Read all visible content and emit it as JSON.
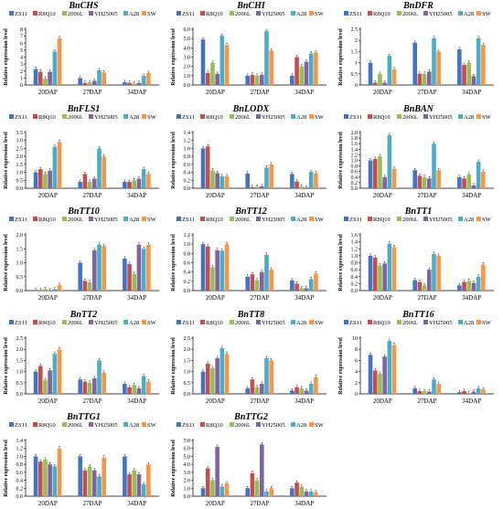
{
  "series_colors": [
    "#4472c4",
    "#c0504d",
    "#9bbb59",
    "#8064a2",
    "#4bacc6",
    "#f79646"
  ],
  "chart_data": [
    {
      "type": "bar",
      "title": "BnCHS",
      "ylabel": "Relative expression level",
      "ylim": [
        0,
        8
      ],
      "yticks": [
        0,
        1,
        2,
        3,
        4,
        5,
        6,
        7,
        8
      ],
      "ytick_labels": [
        "0",
        "1",
        "2",
        "3",
        "4",
        "5",
        "6",
        "7",
        "8"
      ],
      "categories": [
        "20DAP",
        "27DAP",
        "34DAP"
      ],
      "series": [
        {
          "name": "ZS11",
          "values": [
            2.3,
            1.0,
            0.4
          ]
        },
        {
          "name": "R8Q10",
          "values": [
            1.9,
            0.3,
            0.3
          ]
        },
        {
          "name": "2006L",
          "values": [
            0.9,
            0.4,
            0.2
          ]
        },
        {
          "name": "YH25005",
          "values": [
            1.9,
            0.6,
            0.3
          ]
        },
        {
          "name": "A28",
          "values": [
            4.8,
            2.1,
            1.3
          ]
        },
        {
          "name": "SW",
          "values": [
            6.7,
            1.8,
            1.7
          ]
        }
      ]
    },
    {
      "type": "bar",
      "title": "BnCHI",
      "ylabel": "Relative expression level",
      "ylim": [
        0,
        6
      ],
      "yticks": [
        0,
        1,
        2,
        3,
        4,
        5,
        6
      ],
      "ytick_labels": [
        "0.0",
        "1.0",
        "2.0",
        "3.0",
        "4.0",
        "5.0",
        "6.0"
      ],
      "categories": [
        "20DAP",
        "27DAP",
        "34DAP"
      ],
      "series": [
        {
          "name": "ZS11",
          "values": [
            4.9,
            1.0,
            1.0
          ]
        },
        {
          "name": "R8Q10",
          "values": [
            1.3,
            1.1,
            3.0
          ]
        },
        {
          "name": "2006L",
          "values": [
            2.4,
            1.0,
            2.0
          ]
        },
        {
          "name": "YH25005",
          "values": [
            1.2,
            1.1,
            2.5
          ]
        },
        {
          "name": "A28",
          "values": [
            5.3,
            5.8,
            3.4
          ]
        },
        {
          "name": "SW",
          "values": [
            4.3,
            3.7,
            3.5
          ]
        }
      ]
    },
    {
      "type": "bar",
      "title": "BnDFR",
      "ylabel": "Relative expression level",
      "ylim": [
        0,
        2.5
      ],
      "yticks": [
        0,
        0.5,
        1,
        1.5,
        2,
        2.5
      ],
      "ytick_labels": [
        "0",
        "0.5",
        "1",
        "1.5",
        "2",
        "2.5"
      ],
      "categories": [
        "20DAP",
        "27DAP",
        "34DAP"
      ],
      "series": [
        {
          "name": "ZS11",
          "values": [
            1.0,
            1.9,
            1.6
          ]
        },
        {
          "name": "R8Q10",
          "values": [
            0.1,
            0.5,
            0.9
          ]
        },
        {
          "name": "2006L",
          "values": [
            0.5,
            0.5,
            1.0
          ]
        },
        {
          "name": "YH25005",
          "values": [
            0.1,
            0.6,
            0.4
          ]
        },
        {
          "name": "A28",
          "values": [
            1.3,
            2.1,
            2.1
          ]
        },
        {
          "name": "SW",
          "values": [
            0.7,
            1.5,
            1.8
          ]
        }
      ]
    },
    {
      "type": "bar",
      "title": "BnFLS1",
      "ylabel": "Relative expression level",
      "ylim": [
        0,
        3.5
      ],
      "yticks": [
        0,
        0.5,
        1,
        1.5,
        2,
        2.5,
        3,
        3.5
      ],
      "ytick_labels": [
        "0.0",
        "0.5",
        "1.0",
        "1.5",
        "2.0",
        "2.5",
        "3.0",
        "3.5"
      ],
      "categories": [
        "20DAP",
        "27DAP",
        "34DAP"
      ],
      "series": [
        {
          "name": "ZS11",
          "values": [
            1.0,
            0.4,
            0.4
          ]
        },
        {
          "name": "R8Q10",
          "values": [
            1.2,
            0.9,
            0.4
          ]
        },
        {
          "name": "2006L",
          "values": [
            0.9,
            0.4,
            0.5
          ]
        },
        {
          "name": "YH25005",
          "values": [
            1.1,
            0.6,
            0.6
          ]
        },
        {
          "name": "A28",
          "values": [
            2.6,
            2.5,
            1.2
          ]
        },
        {
          "name": "SW",
          "values": [
            2.9,
            2.0,
            0.9
          ]
        }
      ]
    },
    {
      "type": "bar",
      "title": "BnLODX",
      "ylabel": "Relative expression level",
      "ylim": [
        0,
        1.4
      ],
      "yticks": [
        0,
        0.2,
        0.4,
        0.6,
        0.8,
        1,
        1.2,
        1.4
      ],
      "ytick_labels": [
        "0.0",
        "0.2",
        "0.4",
        "0.6",
        "0.8",
        "1.0",
        "1.2",
        "1.4"
      ],
      "categories": [
        "20DAP",
        "27DAP",
        "34DAP"
      ],
      "series": [
        {
          "name": "ZS11",
          "values": [
            1.0,
            0.37,
            0.36
          ]
        },
        {
          "name": "R8Q10",
          "values": [
            1.05,
            0.03,
            0.17
          ]
        },
        {
          "name": "2006L",
          "values": [
            0.45,
            0.04,
            0.04
          ]
        },
        {
          "name": "YH25005",
          "values": [
            0.38,
            0.05,
            0.02
          ]
        },
        {
          "name": "A28",
          "values": [
            0.3,
            0.52,
            0.41
          ]
        },
        {
          "name": "SW",
          "values": [
            0.3,
            0.6,
            0.38
          ]
        }
      ]
    },
    {
      "type": "bar",
      "title": "BnBAN",
      "ylabel": "Relative expression level",
      "ylim": [
        0,
        2
      ],
      "yticks": [
        0,
        0.2,
        0.4,
        0.6,
        0.8,
        1,
        1.2,
        1.4,
        1.6,
        1.8,
        2
      ],
      "ytick_labels": [
        "0.0",
        "0.2",
        "0.4",
        "0.6",
        "0.8",
        "1.0",
        "1.2",
        "1.4",
        "1.6",
        "1.8",
        "2.0"
      ],
      "categories": [
        "20DAP",
        "27DAP",
        "34DAP"
      ],
      "series": [
        {
          "name": "ZS11",
          "values": [
            1.0,
            0.65,
            0.4
          ]
        },
        {
          "name": "R8Q10",
          "values": [
            1.05,
            0.45,
            0.35
          ]
        },
        {
          "name": "2006L",
          "values": [
            1.15,
            0.4,
            0.5
          ]
        },
        {
          "name": "YH25005",
          "values": [
            0.4,
            0.35,
            0.1
          ]
        },
        {
          "name": "A28",
          "values": [
            1.9,
            1.6,
            0.95
          ]
        },
        {
          "name": "SW",
          "values": [
            0.7,
            0.65,
            0.6
          ]
        }
      ]
    },
    {
      "type": "bar",
      "title": "BnTT10",
      "ylabel": "Relative expression level",
      "ylim": [
        0,
        2
      ],
      "yticks": [
        0,
        0.5,
        1,
        1.5,
        2
      ],
      "ytick_labels": [
        "0.0",
        "0.5",
        "1.0",
        "1.5",
        "2.0"
      ],
      "categories": [
        "20DAP",
        "27DAP",
        "34DAP"
      ],
      "series": [
        {
          "name": "ZS11",
          "values": [
            0.0,
            1.0,
            1.15
          ]
        },
        {
          "name": "R8Q10",
          "values": [
            0.0,
            0.35,
            0.95
          ]
        },
        {
          "name": "2006L",
          "values": [
            0.05,
            0.3,
            0.6
          ]
        },
        {
          "name": "YH25005",
          "values": [
            0.0,
            1.45,
            1.65
          ]
        },
        {
          "name": "A28",
          "values": [
            0.05,
            1.65,
            1.5
          ]
        },
        {
          "name": "SW",
          "values": [
            0.2,
            1.6,
            1.65
          ]
        }
      ]
    },
    {
      "type": "bar",
      "title": "BnTT12",
      "ylabel": "Relative expression level",
      "ylim": [
        0,
        1.2
      ],
      "yticks": [
        0,
        0.2,
        0.4,
        0.6,
        0.8,
        1,
        1.2
      ],
      "ytick_labels": [
        "0.0",
        "0.2",
        "0.4",
        "0.6",
        "0.8",
        "1.0",
        "1.2"
      ],
      "categories": [
        "20DAP",
        "27DAP",
        "34DAP"
      ],
      "series": [
        {
          "name": "ZS11",
          "values": [
            1.0,
            0.3,
            0.22
          ]
        },
        {
          "name": "R8Q10",
          "values": [
            0.95,
            0.35,
            0.15
          ]
        },
        {
          "name": "2006L",
          "values": [
            0.5,
            0.22,
            0.05
          ]
        },
        {
          "name": "YH25005",
          "values": [
            0.87,
            0.4,
            0.05
          ]
        },
        {
          "name": "A28",
          "values": [
            0.86,
            0.77,
            0.25
          ]
        },
        {
          "name": "SW",
          "values": [
            1.0,
            0.45,
            0.37
          ]
        }
      ]
    },
    {
      "type": "bar",
      "title": "BnTT1",
      "ylabel": "Relative expression level",
      "ylim": [
        0,
        1.6
      ],
      "yticks": [
        0,
        0.2,
        0.4,
        0.6,
        0.8,
        1,
        1.2,
        1.4,
        1.6
      ],
      "ytick_labels": [
        "0.0",
        "0.2",
        "0.4",
        "0.6",
        "0.8",
        "1.0",
        "1.2",
        "1.4",
        "1.6"
      ],
      "categories": [
        "20DAP",
        "27DAP",
        "34DAP"
      ],
      "series": [
        {
          "name": "ZS11",
          "values": [
            1.0,
            0.3,
            0.15
          ]
        },
        {
          "name": "R8Q10",
          "values": [
            0.95,
            0.25,
            0.25
          ]
        },
        {
          "name": "2006L",
          "values": [
            0.72,
            0.15,
            0.28
          ]
        },
        {
          "name": "YH25005",
          "values": [
            0.78,
            0.6,
            0.22
          ]
        },
        {
          "name": "A28",
          "values": [
            1.35,
            1.05,
            0.4
          ]
        },
        {
          "name": "SW",
          "values": [
            1.25,
            1.0,
            0.75
          ]
        }
      ]
    },
    {
      "type": "bar",
      "title": "BnTT2",
      "ylabel": "Relative expression level",
      "ylim": [
        0,
        2.5
      ],
      "yticks": [
        0,
        0.5,
        1,
        1.5,
        2,
        2.5
      ],
      "ytick_labels": [
        "0.0",
        "0.5",
        "1.0",
        "1.5",
        "2.0",
        "2.5"
      ],
      "categories": [
        "20DAP",
        "27DAP",
        "34DAP"
      ],
      "series": [
        {
          "name": "ZS11",
          "values": [
            1.0,
            0.65,
            0.45
          ]
        },
        {
          "name": "R8Q10",
          "values": [
            1.25,
            0.55,
            0.3
          ]
        },
        {
          "name": "2006L",
          "values": [
            0.6,
            0.5,
            0.4
          ]
        },
        {
          "name": "YH25005",
          "values": [
            1.05,
            0.7,
            0.25
          ]
        },
        {
          "name": "A28",
          "values": [
            1.8,
            1.5,
            0.8
          ]
        },
        {
          "name": "SW",
          "values": [
            2.0,
            0.95,
            0.55
          ]
        }
      ]
    },
    {
      "type": "bar",
      "title": "BnTT8",
      "ylabel": "Relative expression level",
      "ylim": [
        0,
        2.5
      ],
      "yticks": [
        0,
        0.5,
        1,
        1.5,
        2,
        2.5
      ],
      "ytick_labels": [
        "0.0",
        "0.5",
        "1.0",
        "1.5",
        "2.0",
        "2.5"
      ],
      "categories": [
        "20DAP",
        "27DAP",
        "34DAP"
      ],
      "series": [
        {
          "name": "ZS11",
          "values": [
            1.0,
            0.25,
            0.15
          ]
        },
        {
          "name": "R8Q10",
          "values": [
            1.35,
            0.65,
            0.3
          ]
        },
        {
          "name": "2006L",
          "values": [
            1.15,
            0.3,
            0.25
          ]
        },
        {
          "name": "YH25005",
          "values": [
            1.6,
            0.45,
            0.15
          ]
        },
        {
          "name": "A28",
          "values": [
            2.05,
            1.6,
            0.45
          ]
        },
        {
          "name": "SW",
          "values": [
            1.8,
            1.5,
            0.75
          ]
        }
      ]
    },
    {
      "type": "bar",
      "title": "BnTT16",
      "ylabel": "Relative expression level",
      "ylim": [
        0,
        10
      ],
      "yticks": [
        0,
        2,
        4,
        6,
        8,
        10
      ],
      "ytick_labels": [
        "0",
        "2",
        "4",
        "6",
        "8",
        "10"
      ],
      "categories": [
        "20DAP",
        "27DAP",
        "34DAP"
      ],
      "series": [
        {
          "name": "ZS11",
          "values": [
            7.0,
            1.0,
            0.3
          ]
        },
        {
          "name": "R8Q10",
          "values": [
            4.2,
            0.5,
            0.5
          ]
        },
        {
          "name": "2006L",
          "values": [
            3.6,
            0.5,
            0.2
          ]
        },
        {
          "name": "YH25005",
          "values": [
            6.7,
            0.4,
            0.4
          ]
        },
        {
          "name": "A28",
          "values": [
            9.5,
            2.6,
            1.0
          ]
        },
        {
          "name": "SW",
          "values": [
            8.8,
            1.8,
            0.8
          ]
        }
      ]
    },
    {
      "type": "bar",
      "title": "BnTTG1",
      "ylabel": "Relative expression level",
      "ylim": [
        0,
        1.4
      ],
      "yticks": [
        0,
        0.2,
        0.4,
        0.6,
        0.8,
        1,
        1.2,
        1.4
      ],
      "ytick_labels": [
        "0.0",
        "0.2",
        "0.4",
        "0.6",
        "0.8",
        "1.0",
        "1.2",
        "1.4"
      ],
      "categories": [
        "20DAP",
        "27DAP",
        "34DAP"
      ],
      "series": [
        {
          "name": "ZS11",
          "values": [
            1.0,
            1.0,
            1.0
          ]
        },
        {
          "name": "R8Q10",
          "values": [
            0.87,
            0.65,
            0.55
          ]
        },
        {
          "name": "2006L",
          "values": [
            0.92,
            0.75,
            0.65
          ]
        },
        {
          "name": "YH25005",
          "values": [
            0.8,
            0.65,
            0.55
          ]
        },
        {
          "name": "A28",
          "values": [
            0.75,
            0.5,
            0.3
          ]
        },
        {
          "name": "SW",
          "values": [
            1.2,
            0.97,
            0.8
          ]
        }
      ]
    },
    {
      "type": "bar",
      "title": "BnTTG2",
      "ylabel": "Relative expression level",
      "ylim": [
        0,
        7
      ],
      "yticks": [
        0,
        1,
        2,
        3,
        4,
        5,
        6,
        7
      ],
      "ytick_labels": [
        "0.0",
        "1.0",
        "2.0",
        "3.0",
        "4.0",
        "5.0",
        "6.0",
        "7.0"
      ],
      "categories": [
        "20DAP",
        "27DAP",
        "34DAP"
      ],
      "series": [
        {
          "name": "ZS11",
          "values": [
            1.0,
            1.0,
            1.0
          ]
        },
        {
          "name": "R8Q10",
          "values": [
            3.5,
            2.9,
            1.7
          ]
        },
        {
          "name": "2006L",
          "values": [
            2.0,
            2.0,
            1.2
          ]
        },
        {
          "name": "YH25005",
          "values": [
            6.2,
            6.5,
            0.6
          ]
        },
        {
          "name": "A28",
          "values": [
            1.2,
            0.6,
            0.6
          ]
        },
        {
          "name": "SW",
          "values": [
            1.6,
            1.0,
            0.5
          ]
        }
      ]
    }
  ]
}
